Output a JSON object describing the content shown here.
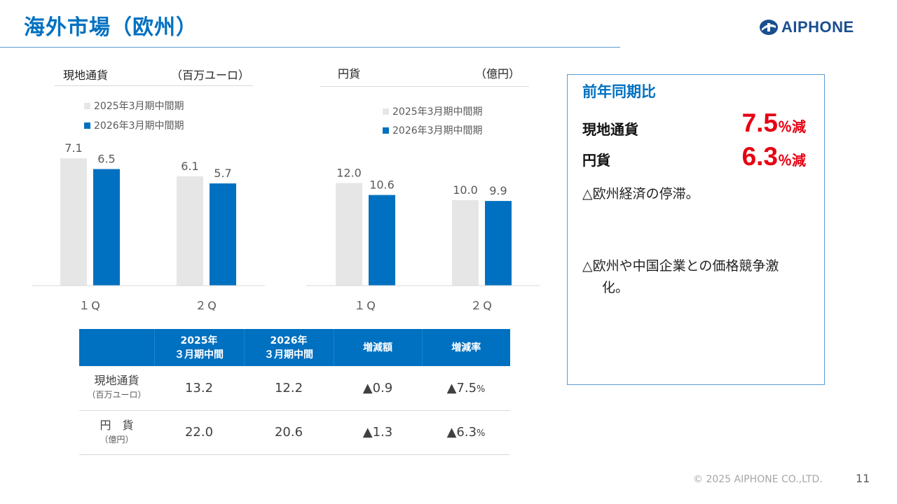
{
  "title": "海外市場（欧州）",
  "brand": {
    "name": "AIPHONE",
    "color": "#1a4f8f"
  },
  "colors": {
    "accent": "#0070c0",
    "prev": "#e6e6e6",
    "curr": "#0070c0",
    "red": "#e60012"
  },
  "chart_data": [
    {
      "type": "bar",
      "title": "現地通貨",
      "unit_label": "（百万ユーロ）",
      "categories": [
        "1Q",
        "2Q"
      ],
      "category_labels": [
        "１Q",
        "２Q"
      ],
      "series": [
        {
          "name": "2025年3月期中間期",
          "values": [
            7.1,
            6.1
          ]
        },
        {
          "name": "2026年3月期中間期",
          "values": [
            6.5,
            5.7
          ]
        }
      ],
      "ylim": [
        0,
        8.2
      ],
      "grid": false,
      "legend": "top-left"
    },
    {
      "type": "bar",
      "title": "円貨",
      "unit_label": "（億円）",
      "categories": [
        "1Q",
        "2Q"
      ],
      "category_labels": [
        "１Q",
        "２Q"
      ],
      "series": [
        {
          "name": "2025年3月期中間期",
          "values": [
            12.0,
            10.0
          ]
        },
        {
          "name": "2026年3月期中間期",
          "values": [
            10.6,
            9.9
          ]
        }
      ],
      "ylim": [
        0,
        17.2
      ],
      "grid": false,
      "legend": "top-left"
    }
  ],
  "table": {
    "headers": [
      "",
      "2025年\n３月期中間",
      "2026年\n３月期中間",
      "増減額",
      "増減率"
    ],
    "header_lines": [
      [
        "2025年",
        "３月期中間"
      ],
      [
        "2026年",
        "３月期中間"
      ]
    ],
    "header_change": "増減額",
    "header_rate": "増減率",
    "rows": [
      {
        "label": "現地通貨",
        "sub": "（百万ユーロ）",
        "prev": "13.2",
        "curr": "12.2",
        "change": "▲0.9",
        "rate": "▲7.5",
        "rate_unit": "%"
      },
      {
        "label": "円　貨",
        "sub": "（億円）",
        "prev": "22.0",
        "curr": "20.6",
        "change": "▲1.3",
        "rate": "▲6.3",
        "rate_unit": "%"
      }
    ]
  },
  "summary": {
    "title": "前年同期比",
    "items": [
      {
        "label": "現地通貨",
        "value": "7.5",
        "unit": "％減"
      },
      {
        "label": "円貨",
        "value": "6.3",
        "unit": "％減"
      }
    ],
    "notes": [
      {
        "mark": "△",
        "text": "欧州経済の停滞。",
        "cont": ""
      },
      {
        "mark": "△",
        "text": "欧州や中国企業との価格競争激",
        "cont": "化。"
      }
    ]
  },
  "footer": {
    "copyright": "© 2025 AIPHONE CO.,LTD.",
    "page": "11"
  }
}
